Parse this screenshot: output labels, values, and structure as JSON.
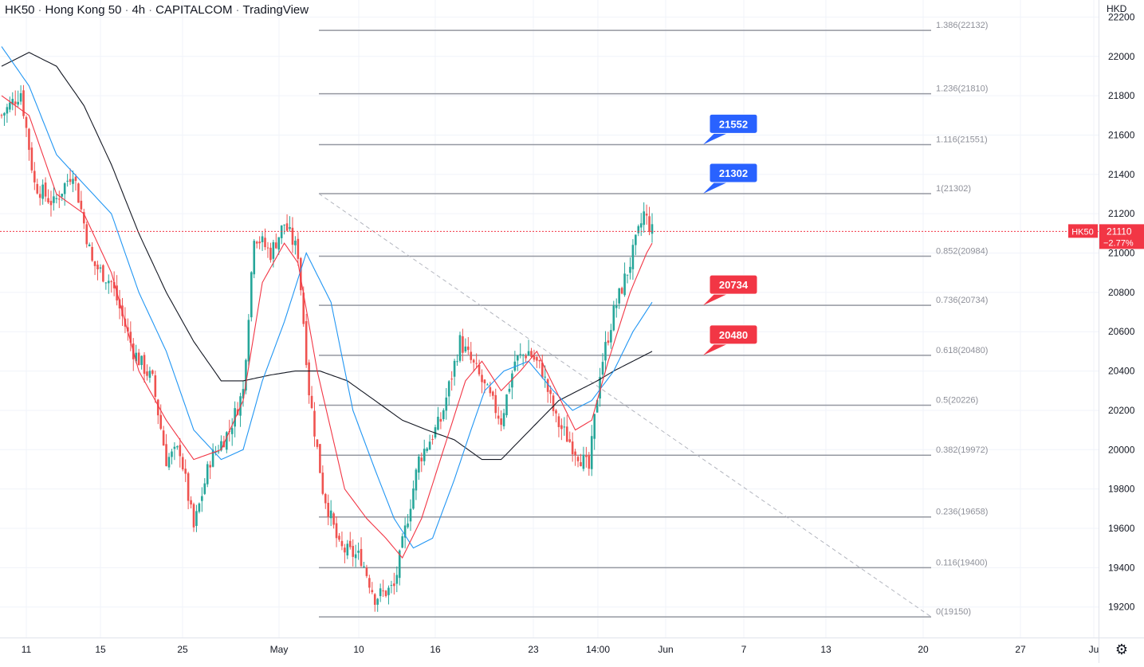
{
  "header": {
    "symbol": "HK50",
    "name": "Hong Kong 50",
    "interval": "4h",
    "source": "CAPITALCOM",
    "platform": "TradingView"
  },
  "axis": {
    "currency": "HKD",
    "y_ticks": [
      22200,
      22000,
      21800,
      21600,
      21400,
      21200,
      21000,
      20800,
      20600,
      20400,
      20200,
      20000,
      19800,
      19600,
      19400,
      19200
    ],
    "x_ticks": [
      "11",
      "15",
      "25",
      "May",
      "10",
      "16",
      "23",
      "14:00",
      "Jun",
      "7",
      "13",
      "20",
      "27",
      "Ju"
    ]
  },
  "price": {
    "label": "HK50",
    "value": "21110",
    "change": "−2.77%",
    "level": 21110
  },
  "chart_data": {
    "type": "candlestick",
    "ylim": [
      19130,
      22230
    ],
    "fibonacci": {
      "levels": [
        {
          "ratio": "1.386",
          "value": 22132
        },
        {
          "ratio": "1.236",
          "value": 21810
        },
        {
          "ratio": "1.116",
          "value": 21551
        },
        {
          "ratio": "1",
          "value": 21302
        },
        {
          "ratio": "0.852",
          "value": 20984
        },
        {
          "ratio": "0.736",
          "value": 20734
        },
        {
          "ratio": "0.618",
          "value": 20480
        },
        {
          "ratio": "0.5",
          "value": 20226
        },
        {
          "ratio": "0.382",
          "value": 19972
        },
        {
          "ratio": "0.236",
          "value": 19658
        },
        {
          "ratio": "0.116",
          "value": 19400
        },
        {
          "ratio": "0",
          "value": 19150
        }
      ],
      "trendline": {
        "from": 21302,
        "to": 19150
      }
    },
    "callouts": [
      {
        "text": "21552",
        "value": 21552,
        "color": "#2962ff"
      },
      {
        "text": "21302",
        "value": 21302,
        "color": "#2962ff"
      },
      {
        "text": "20734",
        "value": 20734,
        "color": "#f23645"
      },
      {
        "text": "20480",
        "value": 20480,
        "color": "#f23645"
      }
    ],
    "colors": {
      "up": "#26a69a",
      "down": "#ef5350",
      "ma_fast": "#f23645",
      "ma_mid": "#2196f3",
      "ma_slow": "#131722",
      "fib": "#9598a1"
    },
    "series_waypoints": {
      "close": [
        [
          0,
          21700
        ],
        [
          14,
          21820
        ],
        [
          24,
          21350
        ],
        [
          38,
          21250
        ],
        [
          52,
          21420
        ],
        [
          66,
          20950
        ],
        [
          80,
          20850
        ],
        [
          96,
          20500
        ],
        [
          110,
          20350
        ],
        [
          120,
          19950
        ],
        [
          130,
          20000
        ],
        [
          140,
          19600
        ],
        [
          152,
          19950
        ],
        [
          166,
          20100
        ],
        [
          176,
          20300
        ],
        [
          184,
          21100
        ],
        [
          196,
          21000
        ],
        [
          206,
          21150
        ],
        [
          216,
          21000
        ],
        [
          224,
          20300
        ],
        [
          234,
          19800
        ],
        [
          246,
          19500
        ],
        [
          262,
          19450
        ],
        [
          272,
          19250
        ],
        [
          286,
          19300
        ],
        [
          304,
          19950
        ],
        [
          320,
          20150
        ],
        [
          334,
          20550
        ],
        [
          346,
          20400
        ],
        [
          364,
          20150
        ],
        [
          374,
          20450
        ],
        [
          384,
          20500
        ],
        [
          394,
          20400
        ],
        [
          404,
          20150
        ],
        [
          418,
          20000
        ],
        [
          428,
          19900
        ],
        [
          436,
          20400
        ],
        [
          446,
          20700
        ],
        [
          458,
          20950
        ],
        [
          468,
          21200
        ],
        [
          474,
          21110
        ]
      ],
      "ma_fast": [
        [
          0,
          21800
        ],
        [
          20,
          21700
        ],
        [
          40,
          21300
        ],
        [
          60,
          21200
        ],
        [
          80,
          20900
        ],
        [
          100,
          20400
        ],
        [
          120,
          20150
        ],
        [
          140,
          19950
        ],
        [
          160,
          20000
        ],
        [
          176,
          20250
        ],
        [
          190,
          20850
        ],
        [
          206,
          21050
        ],
        [
          216,
          20950
        ],
        [
          230,
          20400
        ],
        [
          250,
          19800
        ],
        [
          266,
          19650
        ],
        [
          280,
          19550
        ],
        [
          292,
          19450
        ],
        [
          306,
          19650
        ],
        [
          322,
          20000
        ],
        [
          338,
          20350
        ],
        [
          350,
          20450
        ],
        [
          364,
          20300
        ],
        [
          378,
          20400
        ],
        [
          390,
          20500
        ],
        [
          404,
          20300
        ],
        [
          418,
          20100
        ],
        [
          430,
          20150
        ],
        [
          442,
          20450
        ],
        [
          458,
          20800
        ],
        [
          470,
          21000
        ],
        [
          474,
          21050
        ]
      ],
      "ma_mid": [
        [
          0,
          22050
        ],
        [
          20,
          21850
        ],
        [
          40,
          21500
        ],
        [
          60,
          21350
        ],
        [
          80,
          21200
        ],
        [
          100,
          20800
        ],
        [
          120,
          20500
        ],
        [
          140,
          20100
        ],
        [
          160,
          19950
        ],
        [
          176,
          20000
        ],
        [
          190,
          20350
        ],
        [
          206,
          20650
        ],
        [
          222,
          21000
        ],
        [
          240,
          20750
        ],
        [
          256,
          20200
        ],
        [
          272,
          19900
        ],
        [
          286,
          19650
        ],
        [
          300,
          19500
        ],
        [
          314,
          19550
        ],
        [
          330,
          19850
        ],
        [
          342,
          20100
        ],
        [
          352,
          20300
        ],
        [
          366,
          20400
        ],
        [
          384,
          20450
        ],
        [
          402,
          20300
        ],
        [
          416,
          20200
        ],
        [
          430,
          20250
        ],
        [
          446,
          20400
        ],
        [
          460,
          20600
        ],
        [
          474,
          20750
        ]
      ],
      "ma_slow": [
        [
          0,
          21950
        ],
        [
          20,
          22020
        ],
        [
          40,
          21950
        ],
        [
          60,
          21750
        ],
        [
          80,
          21450
        ],
        [
          100,
          21100
        ],
        [
          120,
          20800
        ],
        [
          140,
          20550
        ],
        [
          160,
          20350
        ],
        [
          176,
          20350
        ],
        [
          196,
          20380
        ],
        [
          214,
          20400
        ],
        [
          232,
          20400
        ],
        [
          252,
          20350
        ],
        [
          272,
          20250
        ],
        [
          292,
          20150
        ],
        [
          310,
          20100
        ],
        [
          330,
          20050
        ],
        [
          350,
          19950
        ],
        [
          364,
          19950
        ],
        [
          378,
          20050
        ],
        [
          392,
          20150
        ],
        [
          406,
          20250
        ],
        [
          420,
          20300
        ],
        [
          434,
          20350
        ],
        [
          446,
          20400
        ],
        [
          460,
          20450
        ],
        [
          474,
          20500
        ]
      ]
    }
  }
}
